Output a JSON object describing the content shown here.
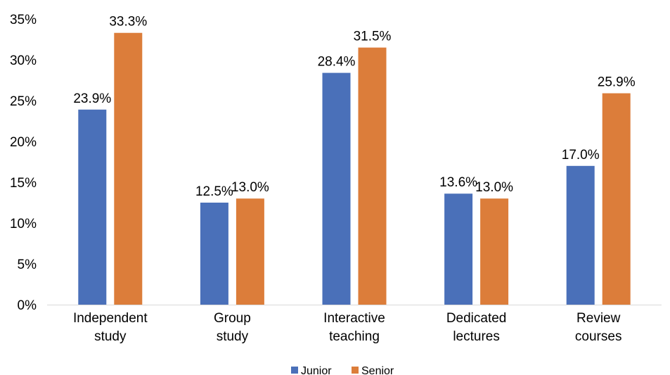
{
  "chart_data": {
    "type": "bar",
    "categories": [
      [
        "Independent",
        "study"
      ],
      [
        "Group",
        "study"
      ],
      [
        "Interactive",
        "teaching"
      ],
      [
        "Dedicated",
        "lectures"
      ],
      [
        "Review",
        "courses"
      ]
    ],
    "series": [
      {
        "name": "Junior",
        "color": "#4a70b9",
        "values": [
          23.9,
          12.5,
          28.4,
          13.6,
          17.0
        ],
        "labels": [
          "23.9%",
          "12.5%",
          "28.4%",
          "13.6%",
          "17.0%"
        ]
      },
      {
        "name": "Senior",
        "color": "#dc7d3a",
        "values": [
          33.3,
          13.0,
          31.5,
          13.0,
          25.9
        ],
        "labels": [
          "33.3%",
          "13.0%",
          "31.5%",
          "13.0%",
          "25.9%"
        ]
      }
    ],
    "y_ticks": [
      "0%",
      "5%",
      "10%",
      "15%",
      "20%",
      "25%",
      "30%",
      "35%"
    ],
    "y_tick_values": [
      0,
      5,
      10,
      15,
      20,
      25,
      30,
      35
    ],
    "ylim": [
      0,
      35
    ],
    "grid": false,
    "legend_position": "bottom"
  }
}
